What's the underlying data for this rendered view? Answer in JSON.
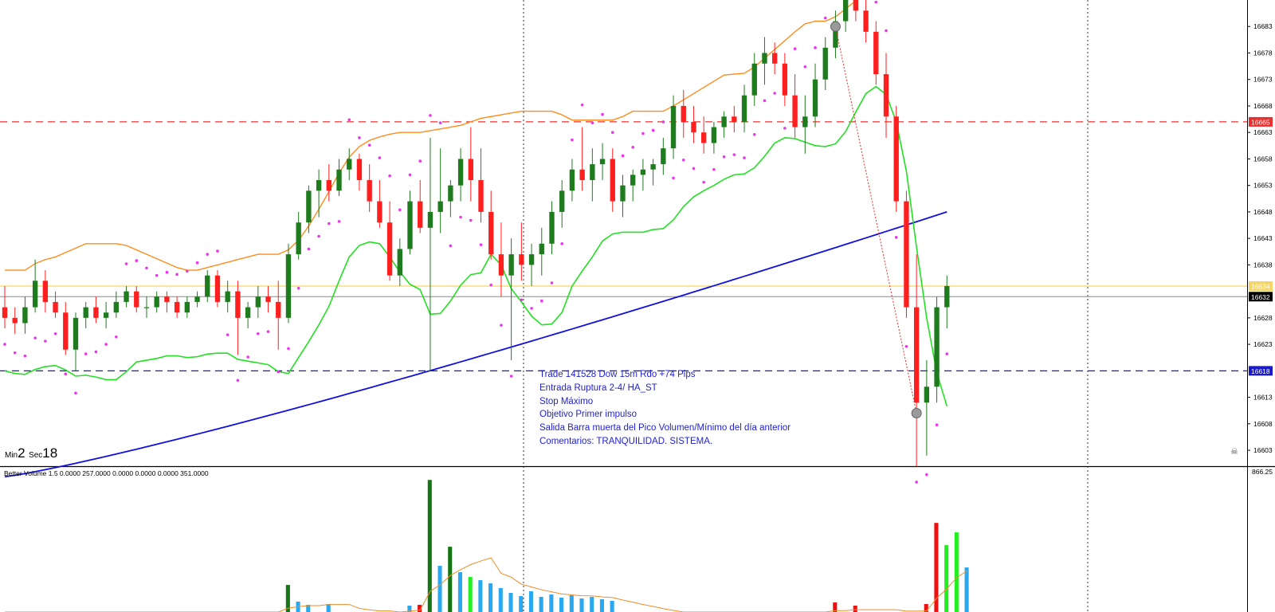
{
  "timer": {
    "min_label": "Min",
    "min_value": "2",
    "sec_label": "Sec",
    "sec_value": "18"
  },
  "annotation": [
    "Trade 141528 Dow 15m Rdo +74 Pips",
    "Entrada  Ruptura 2-4/ HA_ST",
    "Stop Máximo",
    "Objetivo Primer impulso",
    "Salida Barra muerta del Pico Volumen/Mínimo del día anterior",
    "Comentarios: TRANQUILIDAD. SISTEMA."
  ],
  "indicator_title": "Better Volume 1.5 0.0000 257.0000 0.0000 0.0000 0.0000 351.0000",
  "colors": {
    "bull": "#1e7b1e",
    "bear": "#ff1f1f",
    "sar": "#ee33ee",
    "ma": "#1010e0",
    "supertrend": "#22e022",
    "donchian": "#ff8c1a",
    "redline": "#e83030",
    "blueline": "#1a1acc",
    "yellowline": "#f5d565",
    "vol_blue": "#29a8f0",
    "vol_green": "#22ee22",
    "vol_red": "#ee1010",
    "vol_dkgreen": "#167516",
    "vol_ma": "#f08c2a"
  },
  "chart_data": {
    "type": "candlestick",
    "price_axis": {
      "ticks": [
        "16683",
        "16678",
        "16673",
        "16668",
        "16663",
        "16658",
        "16653",
        "16648",
        "16643",
        "16638",
        "16628",
        "16623",
        "16613",
        "16608",
        "16603"
      ],
      "tags": [
        {
          "label": "16665",
          "price": 16665,
          "color": "#e83030"
        },
        {
          "label": "16634",
          "price": 16634,
          "color": "#f5d565"
        },
        {
          "label": "16632",
          "price": 16632,
          "color": "#000000"
        },
        {
          "label": "16618",
          "price": 16618,
          "color": "#1a1acc"
        }
      ],
      "ylim": [
        16600,
        16688
      ]
    },
    "levels": {
      "red_dashed": 16665,
      "blue_dashed": 16618,
      "yellow": 16634,
      "bid": 16632
    },
    "volume_axis": {
      "max_label": "866.25",
      "max": 866.25
    },
    "candles": [
      [
        16630,
        16634,
        16626,
        16628
      ],
      [
        16628,
        16630,
        16625,
        16627
      ],
      [
        16627,
        16632,
        16625,
        16630
      ],
      [
        16630,
        16639,
        16629,
        16635
      ],
      [
        16635,
        16637,
        16629,
        16631
      ],
      [
        16631,
        16633,
        16628,
        16629
      ],
      [
        16629,
        16631,
        16621,
        16622
      ],
      [
        16622,
        16629,
        16618,
        16628
      ],
      [
        16628,
        16631,
        16626,
        16630
      ],
      [
        16630,
        16632,
        16627,
        16628
      ],
      [
        16628,
        16631,
        16626,
        16629
      ],
      [
        16629,
        16633,
        16628,
        16631
      ],
      [
        16631,
        16634,
        16630,
        16633
      ],
      [
        16633,
        16634,
        16629,
        16630
      ],
      [
        16630,
        16632,
        16628,
        16630
      ],
      [
        16630,
        16633,
        16629,
        16632
      ],
      [
        16632,
        16633,
        16629,
        16631
      ],
      [
        16631,
        16632,
        16628,
        16629
      ],
      [
        16629,
        16632,
        16628,
        16631
      ],
      [
        16631,
        16633,
        16630,
        16632
      ],
      [
        16632,
        16637,
        16631,
        16636
      ],
      [
        16636,
        16637,
        16630,
        16631
      ],
      [
        16631,
        16635,
        16629,
        16633
      ],
      [
        16633,
        16635,
        16621,
        16628
      ],
      [
        16628,
        16631,
        16626,
        16630
      ],
      [
        16630,
        16634,
        16628,
        16632
      ],
      [
        16632,
        16634,
        16629,
        16631
      ],
      [
        16631,
        16635,
        16622,
        16628
      ],
      [
        16628,
        16642,
        16627,
        16640
      ],
      [
        16640,
        16648,
        16639,
        16646
      ],
      [
        16646,
        16653,
        16644,
        16652
      ],
      [
        16652,
        16656,
        16647,
        16654
      ],
      [
        16654,
        16657,
        16650,
        16652
      ],
      [
        16652,
        16658,
        16651,
        16656
      ],
      [
        16656,
        16660,
        16654,
        16658
      ],
      [
        16658,
        16659,
        16652,
        16654
      ],
      [
        16654,
        16657,
        16648,
        16650
      ],
      [
        16650,
        16654,
        16645,
        16646
      ],
      [
        16646,
        16650,
        16635,
        16636
      ],
      [
        16636,
        16643,
        16634,
        16641
      ],
      [
        16641,
        16652,
        16640,
        16650
      ],
      [
        16650,
        16654,
        16644,
        16645
      ],
      [
        16645,
        16662,
        16618,
        16648
      ],
      [
        16648,
        16660,
        16644,
        16650
      ],
      [
        16650,
        16654,
        16647,
        16653
      ],
      [
        16653,
        16660,
        16650,
        16658
      ],
      [
        16658,
        16664,
        16650,
        16654
      ],
      [
        16654,
        16660,
        16646,
        16648
      ],
      [
        16648,
        16652,
        16639,
        16640
      ],
      [
        16640,
        16646,
        16632,
        16636
      ],
      [
        16636,
        16643,
        16620,
        16640
      ],
      [
        16640,
        16646,
        16635,
        16638
      ],
      [
        16638,
        16642,
        16634,
        16640
      ],
      [
        16640,
        16645,
        16636,
        16642
      ],
      [
        16642,
        16650,
        16640,
        16648
      ],
      [
        16648,
        16654,
        16645,
        16652
      ],
      [
        16652,
        16658,
        16650,
        16656
      ],
      [
        16656,
        16664,
        16652,
        16654
      ],
      [
        16654,
        16660,
        16650,
        16657
      ],
      [
        16657,
        16661,
        16654,
        16658
      ],
      [
        16658,
        16660,
        16648,
        16650
      ],
      [
        16650,
        16655,
        16647,
        16653
      ],
      [
        16653,
        16656,
        16650,
        16655
      ],
      [
        16655,
        16658,
        16652,
        16656
      ],
      [
        16656,
        16658,
        16653,
        16657
      ],
      [
        16657,
        16662,
        16655,
        16660
      ],
      [
        16660,
        16670,
        16658,
        16668
      ],
      [
        16668,
        16671,
        16662,
        16665
      ],
      [
        16665,
        16668,
        16661,
        16663
      ],
      [
        16663,
        16666,
        16659,
        16661
      ],
      [
        16661,
        16665,
        16659,
        16664
      ],
      [
        16664,
        16667,
        16662,
        16666
      ],
      [
        16666,
        16668,
        16663,
        16665
      ],
      [
        16665,
        16672,
        16663,
        16670
      ],
      [
        16670,
        16678,
        16668,
        16676
      ],
      [
        16676,
        16681,
        16672,
        16678
      ],
      [
        16678,
        16680,
        16674,
        16676
      ],
      [
        16676,
        16678,
        16668,
        16670
      ],
      [
        16670,
        16674,
        16662,
        16664
      ],
      [
        16664,
        16670,
        16659,
        16666
      ],
      [
        16666,
        16676,
        16664,
        16673
      ],
      [
        16673,
        16681,
        16671,
        16679
      ],
      [
        16679,
        16686,
        16677,
        16684
      ],
      [
        16684,
        16690,
        16682,
        16688
      ],
      [
        16688,
        16689,
        16684,
        16686
      ],
      [
        16686,
        16688,
        16680,
        16682
      ],
      [
        16682,
        16684,
        16672,
        16674
      ],
      [
        16674,
        16678,
        16662,
        16666
      ],
      [
        16666,
        16668,
        16648,
        16650
      ],
      [
        16650,
        16652,
        16628,
        16630
      ],
      [
        16630,
        16640,
        16600,
        16612
      ],
      [
        16612,
        16620,
        16602,
        16615
      ],
      [
        16615,
        16632,
        16612,
        16630
      ],
      [
        16630,
        16636,
        16626,
        16634
      ]
    ],
    "volume": [
      {
        "v": 0
      },
      {
        "v": 0
      },
      {
        "v": 0
      },
      {
        "v": 0
      },
      {
        "v": 0
      },
      {
        "v": 0
      },
      {
        "v": 0
      },
      {
        "v": 0
      },
      {
        "v": 0
      },
      {
        "v": 0
      },
      {
        "v": 0
      },
      {
        "v": 0
      },
      {
        "v": 0
      },
      {
        "v": 0
      },
      {
        "v": 0
      },
      {
        "v": 0
      },
      {
        "v": 0
      },
      {
        "v": 0
      },
      {
        "v": 0
      },
      {
        "v": 0
      },
      {
        "v": 0
      },
      {
        "v": 0
      },
      {
        "v": 0
      },
      {
        "v": 0
      },
      {
        "v": 0
      },
      {
        "v": 0
      },
      {
        "v": 0
      },
      {
        "v": 0
      },
      {
        "v": 170,
        "c": "vol_dkgreen"
      },
      {
        "v": 65,
        "c": "vol_blue"
      },
      {
        "v": 45,
        "c": "vol_blue"
      },
      {
        "v": 0
      },
      {
        "v": 50,
        "c": "vol_blue"
      },
      {
        "v": 0
      },
      {
        "v": 0
      },
      {
        "v": 0
      },
      {
        "v": 0
      },
      {
        "v": 0
      },
      {
        "v": 0
      },
      {
        "v": 0
      },
      {
        "v": 40,
        "c": "vol_blue"
      },
      {
        "v": 45,
        "c": "vol_red"
      },
      {
        "v": 830,
        "c": "vol_dkgreen"
      },
      {
        "v": 290,
        "c": "vol_blue"
      },
      {
        "v": 410,
        "c": "vol_dkgreen"
      },
      {
        "v": 250,
        "c": "vol_blue"
      },
      {
        "v": 220,
        "c": "vol_green"
      },
      {
        "v": 200,
        "c": "vol_blue"
      },
      {
        "v": 180,
        "c": "vol_blue"
      },
      {
        "v": 150,
        "c": "vol_blue"
      },
      {
        "v": 120,
        "c": "vol_blue"
      },
      {
        "v": 100,
        "c": "vol_blue"
      },
      {
        "v": 130,
        "c": "vol_blue"
      },
      {
        "v": 95,
        "c": "vol_blue"
      },
      {
        "v": 110,
        "c": "vol_blue"
      },
      {
        "v": 90,
        "c": "vol_blue"
      },
      {
        "v": 105,
        "c": "vol_blue"
      },
      {
        "v": 85,
        "c": "vol_blue"
      },
      {
        "v": 95,
        "c": "vol_blue"
      },
      {
        "v": 80,
        "c": "vol_blue"
      },
      {
        "v": 70,
        "c": "vol_blue"
      },
      {
        "v": 0
      },
      {
        "v": 0
      },
      {
        "v": 0
      },
      {
        "v": 0
      },
      {
        "v": 0
      },
      {
        "v": 0
      },
      {
        "v": 0
      },
      {
        "v": 0
      },
      {
        "v": 0
      },
      {
        "v": 0
      },
      {
        "v": 0
      },
      {
        "v": 0
      },
      {
        "v": 0
      },
      {
        "v": 0
      },
      {
        "v": 0
      },
      {
        "v": 0
      },
      {
        "v": 0
      },
      {
        "v": 0
      },
      {
        "v": 0
      },
      {
        "v": 0
      },
      {
        "v": 0
      },
      {
        "v": 60,
        "c": "vol_red"
      },
      {
        "v": 0
      },
      {
        "v": 40,
        "c": "vol_red"
      },
      {
        "v": 0
      },
      {
        "v": 0
      },
      {
        "v": 0
      },
      {
        "v": 0
      },
      {
        "v": 0
      },
      {
        "v": 0
      },
      {
        "v": 50,
        "c": "vol_red"
      },
      {
        "v": 560,
        "c": "vol_red"
      },
      {
        "v": 420,
        "c": "vol_green"
      },
      {
        "v": 500,
        "c": "vol_green"
      },
      {
        "v": 280,
        "c": "vol_blue"
      }
    ]
  }
}
